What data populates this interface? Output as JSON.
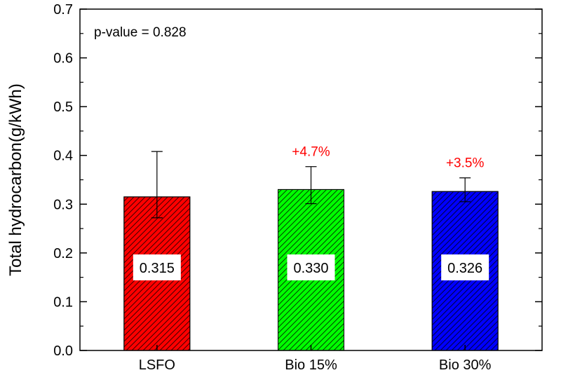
{
  "chart_data": {
    "type": "bar",
    "title": "",
    "xlabel": "",
    "ylabel": "Total hydrocarbon(g/kWh)",
    "ylim": [
      0.0,
      0.7
    ],
    "yticks": [
      "0.0",
      "0.1",
      "0.2",
      "0.3",
      "0.4",
      "0.5",
      "0.6",
      "0.7"
    ],
    "grid": false,
    "annotation": "p-value = 0.828",
    "categories": [
      "LSFO",
      "Bio 15%",
      "Bio 30%"
    ],
    "values": [
      0.315,
      0.33,
      0.326
    ],
    "value_labels": [
      "0.315",
      "0.330",
      "0.326"
    ],
    "error_low": [
      0.272,
      0.301,
      0.305
    ],
    "error_high": [
      0.408,
      0.377,
      0.354
    ],
    "change_labels": [
      "",
      "+4.7%",
      "+3.5%"
    ],
    "colors": [
      "#ff0000",
      "#00ff00",
      "#0000ff"
    ],
    "change_label_color": "#ff0000"
  }
}
